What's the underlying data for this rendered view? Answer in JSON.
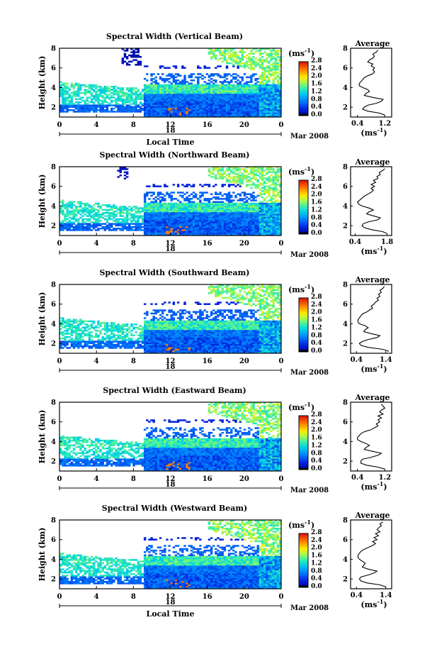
{
  "figure": {
    "xlabel": "Local Time",
    "ylabel": "Height (km)",
    "date_label": "Mar 2008",
    "day_label": "18",
    "avg_title": "Average",
    "unit_label": "(ms",
    "unit_exp": "-1",
    "unit_close": ")"
  },
  "chart_data": [
    {
      "type": "heatmap",
      "title": "Spectral Width (Vertical Beam)",
      "xlabel": "Local Time",
      "ylabel": "Height (km)",
      "xticks": [
        "0",
        "4",
        "8",
        "12",
        "16",
        "20",
        "0"
      ],
      "yticks": [
        "2",
        "4",
        "6",
        "8"
      ],
      "xlim": [
        0,
        24
      ],
      "ylim": [
        1,
        8
      ],
      "colorbar": {
        "ticks": [
          "0.0",
          "0.4",
          "0.8",
          "1.2",
          "1.6",
          "2.0",
          "2.4",
          "2.8"
        ],
        "range": [
          0,
          2.8
        ]
      },
      "profile": {
        "title": "Average",
        "xticks": [
          "0.4",
          "1.2"
        ],
        "xlim": [
          0.2,
          1.4
        ],
        "yticks": [
          "2",
          "4",
          "6",
          "8"
        ],
        "heights": [
          1.2,
          1.4,
          1.6,
          1.8,
          2.0,
          2.2,
          2.4,
          2.6,
          2.8,
          3.0,
          3.2,
          3.4,
          3.6,
          3.8,
          4.0,
          4.2,
          4.4,
          4.6,
          4.8,
          5.0,
          5.2,
          5.4,
          5.6,
          5.8,
          6.0,
          6.2,
          6.4,
          6.6,
          6.8,
          7.0,
          7.2,
          7.4,
          7.6,
          7.8
        ],
        "values": [
          1.2,
          1.05,
          0.7,
          0.55,
          0.6,
          0.7,
          0.95,
          1.1,
          1.15,
          0.85,
          0.6,
          0.65,
          0.75,
          0.7,
          0.55,
          0.45,
          0.45,
          0.5,
          0.55,
          0.6,
          0.7,
          0.85,
          0.9,
          0.85,
          0.9,
          0.8,
          0.85,
          0.7,
          0.75,
          0.85,
          0.9,
          0.85,
          0.95,
          1.0
        ]
      }
    },
    {
      "type": "heatmap",
      "title": "Spectral Width (Northward Beam)",
      "xlabel": "",
      "ylabel": "Height (km)",
      "xticks": [
        "0",
        "4",
        "8",
        "12",
        "16",
        "20",
        "0"
      ],
      "yticks": [
        "2",
        "4",
        "6",
        "8"
      ],
      "xlim": [
        0,
        24
      ],
      "ylim": [
        1,
        8
      ],
      "colorbar": {
        "ticks": [
          "0.0",
          "0.4",
          "0.8",
          "1.2",
          "1.6",
          "2.0",
          "2.4",
          "2.8"
        ],
        "range": [
          0,
          2.8
        ]
      },
      "profile": {
        "title": "Average",
        "xticks": [
          "0.4",
          "1.8"
        ],
        "xlim": [
          0.2,
          2.0
        ],
        "yticks": [
          "2",
          "4",
          "6",
          "8"
        ],
        "heights": [
          1.2,
          1.4,
          1.6,
          1.8,
          2.0,
          2.2,
          2.4,
          2.6,
          2.8,
          3.0,
          3.2,
          3.4,
          3.6,
          3.8,
          4.0,
          4.2,
          4.4,
          4.6,
          4.8,
          5.0,
          5.2,
          5.4,
          5.6,
          5.8,
          6.0,
          6.2,
          6.4,
          6.6,
          6.8,
          7.0,
          7.2,
          7.4,
          7.6,
          7.8
        ],
        "values": [
          1.8,
          1.6,
          1.1,
          0.8,
          0.7,
          0.75,
          1.0,
          1.4,
          1.5,
          1.2,
          0.9,
          1.0,
          1.2,
          1.0,
          0.7,
          0.55,
          0.5,
          0.6,
          0.7,
          0.8,
          0.95,
          1.1,
          1.2,
          1.1,
          1.25,
          1.1,
          1.3,
          1.2,
          1.4,
          1.35,
          1.5,
          1.45,
          1.6,
          1.7
        ]
      }
    },
    {
      "type": "heatmap",
      "title": "Spectral Width (Southward Beam)",
      "xlabel": "",
      "ylabel": "Height (km)",
      "xticks": [
        "0",
        "4",
        "8",
        "12",
        "16",
        "20",
        "0"
      ],
      "yticks": [
        "2",
        "4",
        "6",
        "8"
      ],
      "xlim": [
        0,
        24
      ],
      "ylim": [
        1,
        8
      ],
      "colorbar": {
        "ticks": [
          "0.0",
          "0.4",
          "0.8",
          "1.2",
          "1.6",
          "2.0",
          "2.4",
          "2.8"
        ],
        "range": [
          0,
          2.8
        ]
      },
      "profile": {
        "title": "Average",
        "xticks": [
          "0.4",
          "1.4"
        ],
        "xlim": [
          0.2,
          1.6
        ],
        "yticks": [
          "2",
          "4",
          "6",
          "8"
        ],
        "heights": [
          1.2,
          1.4,
          1.6,
          1.8,
          2.0,
          2.2,
          2.4,
          2.6,
          2.8,
          3.0,
          3.2,
          3.4,
          3.6,
          3.8,
          4.0,
          4.2,
          4.4,
          4.6,
          4.8,
          5.0,
          5.2,
          5.4,
          5.6,
          5.8,
          6.0,
          6.2,
          6.4,
          6.6,
          6.8,
          7.0,
          7.2,
          7.4,
          7.6,
          7.8
        ],
        "values": [
          1.5,
          1.3,
          0.8,
          0.55,
          0.5,
          0.6,
          0.8,
          1.1,
          1.2,
          0.9,
          0.65,
          0.7,
          0.8,
          0.7,
          0.5,
          0.45,
          0.45,
          0.5,
          0.55,
          0.6,
          0.75,
          0.85,
          0.95,
          0.9,
          1.0,
          1.05,
          1.15,
          1.1,
          1.2,
          1.15,
          1.25,
          1.2,
          1.3,
          1.35
        ]
      }
    },
    {
      "type": "heatmap",
      "title": "Spectral Width (Eastward Beam)",
      "xlabel": "",
      "ylabel": "Height (km)",
      "xticks": [
        "0",
        "4",
        "8",
        "12",
        "16",
        "20",
        "0"
      ],
      "yticks": [
        "2",
        "4",
        "6",
        "8"
      ],
      "xlim": [
        0,
        24
      ],
      "ylim": [
        1,
        8
      ],
      "colorbar": {
        "ticks": [
          "0.0",
          "0.4",
          "0.8",
          "1.2",
          "1.6",
          "2.0",
          "2.4",
          "2.8"
        ],
        "range": [
          0,
          2.8
        ]
      },
      "profile": {
        "title": "Average",
        "xticks": [
          "0.4",
          "1.2"
        ],
        "xlim": [
          0.2,
          1.4
        ],
        "yticks": [
          "2",
          "4",
          "6",
          "8"
        ],
        "heights": [
          1.2,
          1.4,
          1.6,
          1.8,
          2.0,
          2.2,
          2.4,
          2.6,
          2.8,
          3.0,
          3.2,
          3.4,
          3.6,
          3.8,
          4.0,
          4.2,
          4.4,
          4.6,
          4.8,
          5.0,
          5.2,
          5.4,
          5.6,
          5.8,
          6.0,
          6.2,
          6.4,
          6.6,
          6.8,
          7.0,
          7.2,
          7.4,
          7.6,
          7.8
        ],
        "values": [
          1.2,
          1.0,
          0.65,
          0.5,
          0.5,
          0.55,
          0.8,
          1.0,
          1.1,
          0.85,
          0.6,
          0.65,
          0.75,
          0.65,
          0.5,
          0.4,
          0.4,
          0.45,
          0.5,
          0.6,
          0.8,
          0.9,
          1.0,
          0.95,
          1.05,
          1.0,
          1.1,
          1.0,
          1.15,
          1.05,
          1.1,
          1.2,
          1.15,
          1.1
        ]
      }
    },
    {
      "type": "heatmap",
      "title": "Spectral Width (Westward Beam)",
      "xlabel": "Local Time",
      "ylabel": "Height (km)",
      "xticks": [
        "0",
        "4",
        "8",
        "12",
        "16",
        "20",
        "0"
      ],
      "yticks": [
        "2",
        "4",
        "6",
        "8"
      ],
      "xlim": [
        0,
        24
      ],
      "ylim": [
        1,
        8
      ],
      "colorbar": {
        "ticks": [
          "0.0",
          "0.4",
          "0.8",
          "1.2",
          "1.6",
          "2.0",
          "2.4",
          "2.8"
        ],
        "range": [
          0,
          2.8
        ]
      },
      "profile": {
        "title": "Average",
        "xticks": [
          "0.4",
          "1.4"
        ],
        "xlim": [
          0.2,
          1.6
        ],
        "yticks": [
          "2",
          "4",
          "6",
          "8"
        ],
        "heights": [
          1.2,
          1.4,
          1.6,
          1.8,
          2.0,
          2.2,
          2.4,
          2.6,
          2.8,
          3.0,
          3.2,
          3.4,
          3.6,
          3.8,
          4.0,
          4.2,
          4.4,
          4.6,
          4.8,
          5.0,
          5.2,
          5.4,
          5.6,
          5.8,
          6.0,
          6.2,
          6.4,
          6.6,
          6.8,
          7.0,
          7.2,
          7.4,
          7.6,
          7.8
        ],
        "values": [
          1.4,
          1.2,
          0.75,
          0.55,
          0.5,
          0.55,
          0.8,
          1.0,
          1.1,
          0.8,
          0.6,
          0.65,
          0.7,
          0.6,
          0.5,
          0.45,
          0.45,
          0.5,
          0.55,
          0.65,
          0.8,
          0.95,
          1.05,
          0.95,
          1.1,
          1.0,
          1.15,
          1.05,
          1.2,
          1.1,
          1.15,
          1.25,
          1.2,
          1.3
        ]
      }
    }
  ]
}
